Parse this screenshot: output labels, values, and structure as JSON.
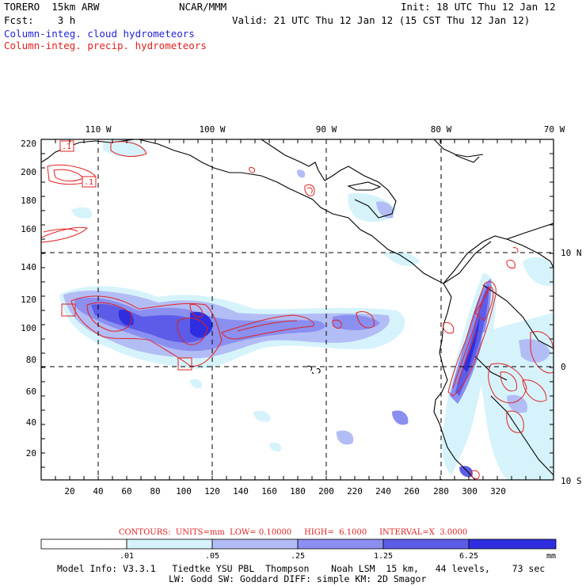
{
  "header": {
    "model": "TORERO  15km ARW",
    "center": "NCAR/MMM",
    "init": "Init: 18 UTC Thu 12 Jan 12",
    "fcst": "Fcst:    3 h",
    "valid": "Valid: 21 UTC Thu 12 Jan 12 (15 CST Thu 12 Jan 12)",
    "field_cloud": "Column-integ. cloud hydrometeors",
    "field_precip": "Column-integ. precip. hydrometeors"
  },
  "colors": {
    "cloud_label": "#2323d6",
    "precip_label": "#e32020",
    "shade_levels": [
      "#ffffff",
      "#d6f3fb",
      "#b3bdf5",
      "#8a8ff0",
      "#5c5ce8",
      "#2e2ee0"
    ]
  },
  "map": {
    "lon_labels": [
      "110 W",
      "100 W",
      "90 W",
      "80 W",
      "70 W"
    ],
    "lat_labels": [
      "10 N",
      "0",
      "10 S"
    ],
    "x_ticks": [
      "20",
      "40",
      "60",
      "80",
      "100",
      "120",
      "140",
      "160",
      "180",
      "200",
      "220",
      "240",
      "260",
      "280",
      "300",
      "320"
    ],
    "y_ticks": [
      "220",
      "200",
      "180",
      "160",
      "140",
      "120",
      "100",
      "80",
      "60",
      "40",
      "20"
    ],
    "contour_labels": [
      ".1",
      ".1"
    ]
  },
  "contour_info": "CONTOURS:  UNITS=mm  LOW= 0.10000     HIGH=  6.1000     INTERVAL=X  3.0000",
  "colorbar": {
    "ticks": [
      ".01",
      ".05",
      ".25",
      "1.25",
      "6.25"
    ],
    "units": "mm"
  },
  "footer": {
    "line1": "Model Info: V3.3.1   Tiedtke YSU PBL  Thompson    Noah LSM  15 km,   44 levels,    73 sec",
    "line2": "LW: Godd SW: Goddard DIFF: simple KM: 2D Smagor"
  }
}
